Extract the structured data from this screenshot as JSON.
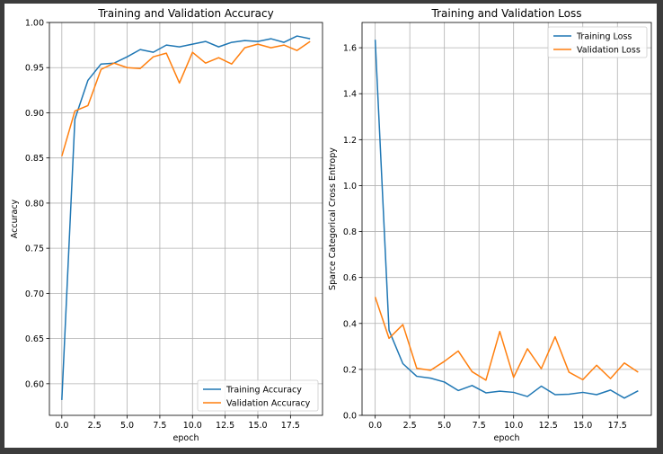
{
  "chart_data": [
    {
      "type": "line",
      "title": "Training and Validation Accuracy",
      "xlabel": "epoch",
      "ylabel": "Accuracy",
      "xlim": [
        -0.95,
        19.95
      ],
      "ylim": [
        0.565,
        1.0
      ],
      "xticks": [
        0,
        2.5,
        5,
        7.5,
        10,
        12.5,
        15,
        17.5
      ],
      "xtick_labels": [
        "0.0",
        "2.5",
        "5.0",
        "7.5",
        "10.0",
        "12.5",
        "15.0",
        "17.5"
      ],
      "yticks": [
        0.6,
        0.65,
        0.7,
        0.75,
        0.8,
        0.85,
        0.9,
        0.95,
        1.0
      ],
      "ytick_labels": [
        "0.60",
        "0.65",
        "0.70",
        "0.75",
        "0.80",
        "0.85",
        "0.90",
        "0.95",
        "1.00"
      ],
      "grid": true,
      "legend_position": "lower right",
      "x": [
        0,
        1,
        2,
        3,
        4,
        5,
        6,
        7,
        8,
        9,
        10,
        11,
        12,
        13,
        14,
        15,
        16,
        17,
        18,
        19
      ],
      "series": [
        {
          "name": "Training Accuracy",
          "color": "#1f77b4",
          "values": [
            0.582,
            0.893,
            0.936,
            0.954,
            0.955,
            0.962,
            0.97,
            0.967,
            0.975,
            0.973,
            0.976,
            0.979,
            0.973,
            0.978,
            0.98,
            0.979,
            0.982,
            0.978,
            0.985,
            0.982
          ]
        },
        {
          "name": "Validation Accuracy",
          "color": "#ff7f0e",
          "values": [
            0.852,
            0.902,
            0.908,
            0.948,
            0.955,
            0.95,
            0.949,
            0.962,
            0.966,
            0.933,
            0.967,
            0.955,
            0.961,
            0.954,
            0.972,
            0.976,
            0.972,
            0.975,
            0.969,
            0.979
          ]
        }
      ]
    },
    {
      "type": "line",
      "title": "Training and Validation Loss",
      "xlabel": "epoch",
      "ylabel": "Sparce Categorical Cross Entropy",
      "xlim": [
        -0.95,
        19.95
      ],
      "ylim": [
        0.0,
        1.71
      ],
      "xticks": [
        0,
        2.5,
        5,
        7.5,
        10,
        12.5,
        15,
        17.5
      ],
      "xtick_labels": [
        "0.0",
        "2.5",
        "5.0",
        "7.5",
        "10.0",
        "12.5",
        "15.0",
        "17.5"
      ],
      "yticks": [
        0.0,
        0.2,
        0.4,
        0.6,
        0.8,
        1.0,
        1.2,
        1.4,
        1.6
      ],
      "ytick_labels": [
        "0.0",
        "0.2",
        "0.4",
        "0.6",
        "0.8",
        "1.0",
        "1.2",
        "1.4",
        "1.6"
      ],
      "grid": true,
      "legend_position": "upper right",
      "x": [
        0,
        1,
        2,
        3,
        4,
        5,
        6,
        7,
        8,
        9,
        10,
        11,
        12,
        13,
        14,
        15,
        16,
        17,
        18,
        19
      ],
      "series": [
        {
          "name": "Training Loss",
          "color": "#1f77b4",
          "values": [
            1.635,
            0.37,
            0.225,
            0.17,
            0.162,
            0.145,
            0.108,
            0.13,
            0.098,
            0.105,
            0.1,
            0.082,
            0.127,
            0.09,
            0.092,
            0.1,
            0.09,
            0.11,
            0.075,
            0.107
          ]
        },
        {
          "name": "Validation Loss",
          "color": "#ff7f0e",
          "values": [
            0.515,
            0.335,
            0.395,
            0.205,
            0.196,
            0.235,
            0.28,
            0.19,
            0.153,
            0.365,
            0.165,
            0.29,
            0.203,
            0.342,
            0.188,
            0.155,
            0.218,
            0.16,
            0.228,
            0.188
          ]
        }
      ]
    }
  ]
}
